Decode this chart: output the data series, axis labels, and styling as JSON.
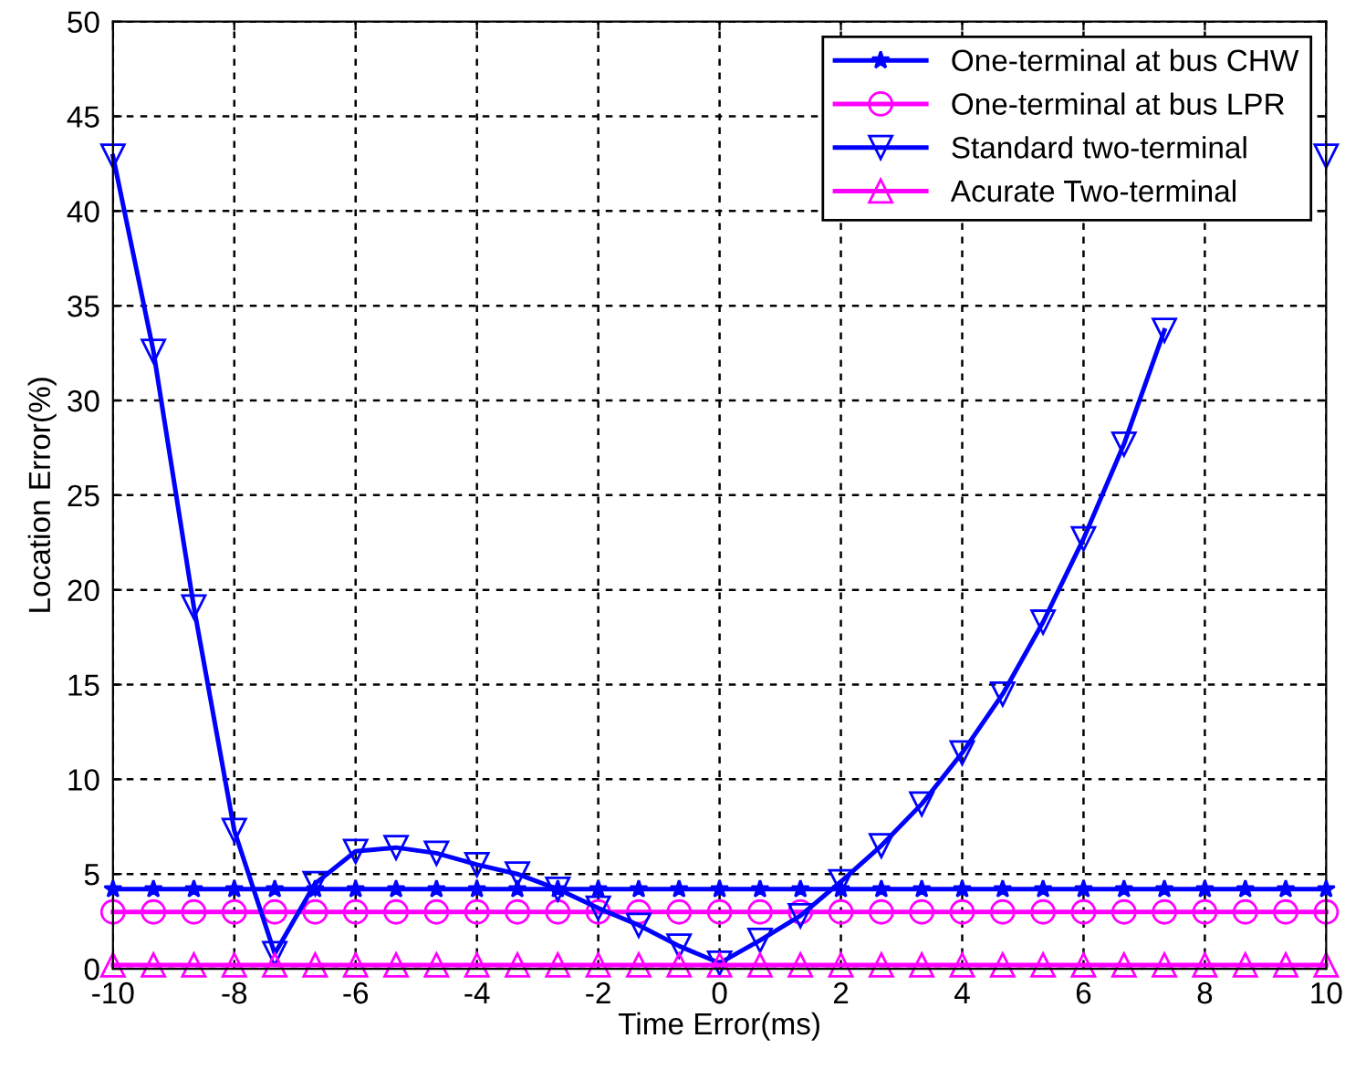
{
  "chart_data": {
    "type": "line",
    "xlabel": "Time Error(ms)",
    "ylabel": "Location Error(%)",
    "x": [
      -10,
      -9.333,
      -8.667,
      -8,
      -7.333,
      -6.667,
      -6,
      -5.333,
      -4.667,
      -4,
      -3.333,
      -2.667,
      -2,
      -1.333,
      -0.667,
      0,
      0.667,
      1.333,
      2,
      2.667,
      3.333,
      4,
      4.667,
      5.333,
      6,
      6.667,
      7.333,
      8,
      8.667,
      9.333,
      10
    ],
    "series": [
      {
        "name": "One-terminal at bus CHW",
        "color": "#0000ff",
        "marker": "star",
        "values": [
          4.2,
          4.2,
          4.2,
          4.2,
          4.2,
          4.2,
          4.2,
          4.2,
          4.2,
          4.2,
          4.2,
          4.2,
          4.2,
          4.2,
          4.2,
          4.2,
          4.2,
          4.2,
          4.2,
          4.2,
          4.2,
          4.2,
          4.2,
          4.2,
          4.2,
          4.2,
          4.2,
          4.2,
          4.2,
          4.2,
          4.2
        ]
      },
      {
        "name": "One-terminal at bus LPR",
        "color": "#ff00ff",
        "marker": "circle",
        "values": [
          3.0,
          3.0,
          3.0,
          3.0,
          3.0,
          3.0,
          3.0,
          3.0,
          3.0,
          3.0,
          3.0,
          3.0,
          3.0,
          3.0,
          3.0,
          3.0,
          3.0,
          3.0,
          3.0,
          3.0,
          3.0,
          3.0,
          3.0,
          3.0,
          3.0,
          3.0,
          3.0,
          3.0,
          3.0,
          3.0,
          3.0
        ]
      },
      {
        "name": "Standard two-terminal",
        "color": "#0000ff",
        "marker": "triangle_down",
        "values": [
          42.9,
          32.6,
          19.1,
          7.3,
          0.8,
          4.5,
          6.2,
          6.4,
          6.1,
          5.5,
          5.0,
          4.2,
          3.2,
          2.3,
          1.2,
          0.3,
          1.5,
          2.8,
          4.6,
          6.5,
          8.7,
          11.4,
          14.5,
          18.3,
          22.7,
          27.7,
          33.7,
          null,
          null,
          null,
          42.9
        ]
      },
      {
        "name": "Acurate Two-terminal",
        "color": "#ff00ff",
        "marker": "triangle",
        "values": [
          0.2,
          0.2,
          0.2,
          0.2,
          0.2,
          0.2,
          0.2,
          0.2,
          0.2,
          0.2,
          0.2,
          0.2,
          0.2,
          0.2,
          0.2,
          0.2,
          0.2,
          0.2,
          0.2,
          0.2,
          0.2,
          0.2,
          0.2,
          0.2,
          0.2,
          0.2,
          0.2,
          0.2,
          0.2,
          0.2,
          0.2
        ]
      }
    ],
    "xlim": [
      -10,
      10
    ],
    "xticks": [
      -10,
      -8,
      -6,
      -4,
      -2,
      0,
      2,
      4,
      6,
      8,
      10
    ],
    "ylim": [
      0,
      50
    ],
    "yticks": [
      0,
      5,
      10,
      15,
      20,
      25,
      30,
      35,
      40,
      45,
      50
    ],
    "grid": true,
    "legend": "top right",
    "line_style": "solid"
  }
}
